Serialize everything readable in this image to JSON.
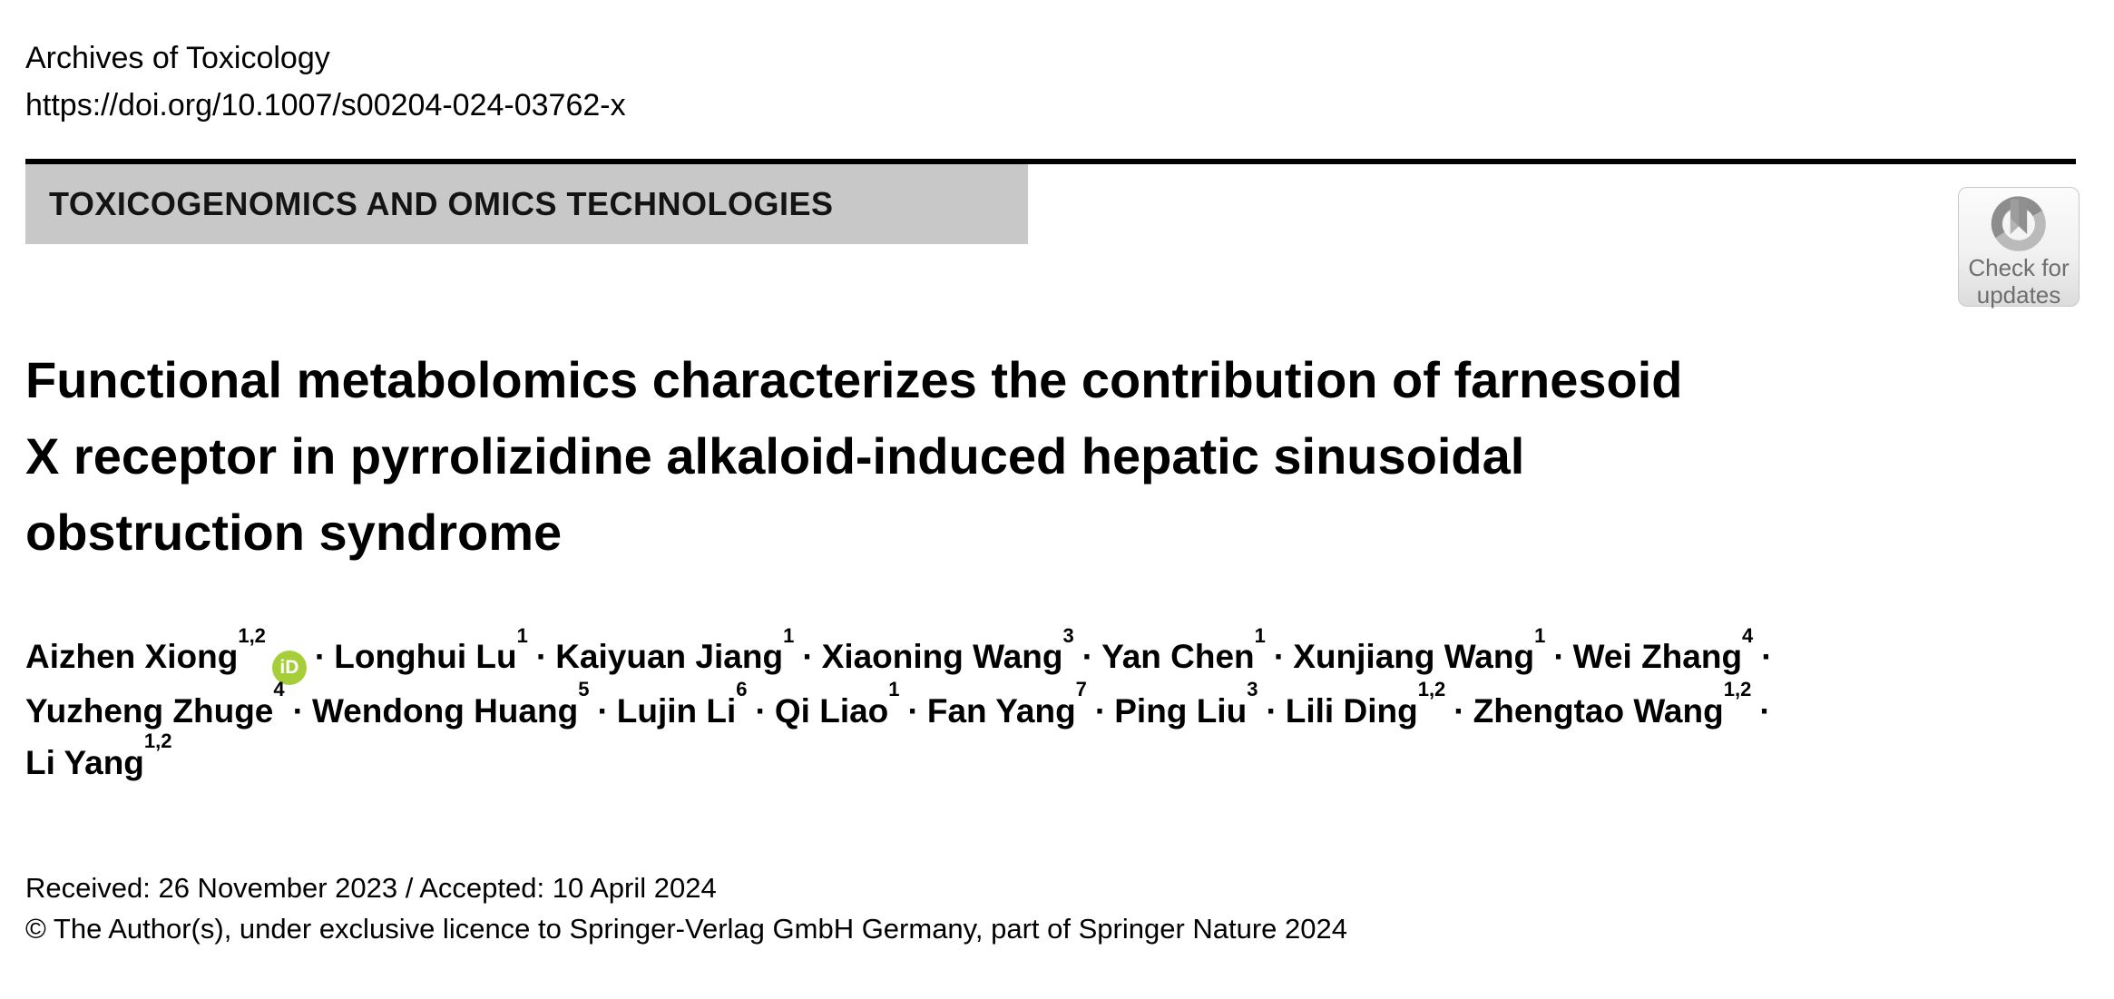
{
  "journal": {
    "name": "Archives of Toxicology",
    "doi": "https://doi.org/10.1007/s00204-024-03762-x"
  },
  "banner": {
    "label": "TOXICOGENOMICS AND OMICS TECHNOLOGIES"
  },
  "check_badge": {
    "line1": "Check for",
    "line2": "updates",
    "icon": "crossmark-icon"
  },
  "title": {
    "lines": [
      "Functional metabolomics characterizes the contribution of farnesoid",
      "X receptor in pyrrolizidine alkaloid-induced hepatic sinusoidal",
      "obstruction syndrome"
    ]
  },
  "authors": {
    "separator": "·",
    "orcid_label": "iD",
    "orcid_color": "#a6ce39",
    "lines": [
      [
        {
          "name": "Aizhen Xiong",
          "sup": "1,2",
          "orcid": true
        },
        {
          "name": "Longhui Lu",
          "sup": "1"
        },
        {
          "name": "Kaiyuan Jiang",
          "sup": "1"
        },
        {
          "name": "Xiaoning Wang",
          "sup": "3"
        },
        {
          "name": "Yan Chen",
          "sup": "1"
        },
        {
          "name": "Xunjiang Wang",
          "sup": "1"
        },
        {
          "name": "Wei Zhang",
          "sup": "4"
        }
      ],
      [
        {
          "name": "Yuzheng Zhuge",
          "sup": "4"
        },
        {
          "name": "Wendong Huang",
          "sup": "5"
        },
        {
          "name": "Lujin Li",
          "sup": "6"
        },
        {
          "name": "Qi Liao",
          "sup": "1"
        },
        {
          "name": "Fan Yang",
          "sup": "7"
        },
        {
          "name": "Ping Liu",
          "sup": "3"
        },
        {
          "name": "Lili Ding",
          "sup": "1,2"
        },
        {
          "name": "Zhengtao Wang",
          "sup": "1,2"
        }
      ],
      [
        {
          "name": "Li Yang",
          "sup": "1,2"
        }
      ]
    ]
  },
  "dates": {
    "received_accepted": "Received: 26 November 2023 / Accepted: 10 April 2024",
    "copyright": "© The Author(s), under exclusive licence to Springer-Verlag GmbH Germany, part of Springer Nature 2024"
  },
  "colors": {
    "banner_bg": "#c8c8c8",
    "rule": "#000000",
    "badge_text": "#6e6e6e",
    "ring_dark": "#8d8d8d",
    "ring_light": "#bababa",
    "bookmark_dark": "#909090",
    "bookmark_light": "#c4c4c4"
  }
}
